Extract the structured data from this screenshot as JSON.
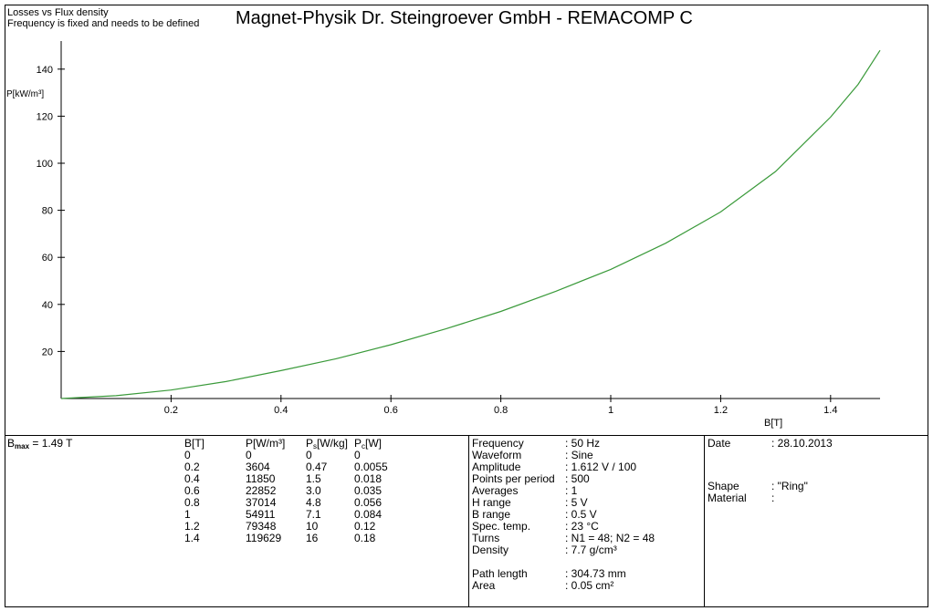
{
  "header": {
    "subtitle_line1": "Losses vs Flux density",
    "subtitle_line2": "Frequency is fixed and needs to be defined",
    "title": "Magnet-Physik Dr. Steingroever GmbH - REMACOMP C"
  },
  "chart_data": {
    "type": "line",
    "xlabel": "B[T]",
    "ylabel": "P[kW/m³]",
    "xlim": [
      0,
      1.49
    ],
    "ylim": [
      0,
      150
    ],
    "x_ticks": [
      "0.2",
      "0.4",
      "0.6",
      "0.8",
      "1",
      "1.2",
      "1.4"
    ],
    "y_ticks": [
      "20",
      "40",
      "60",
      "80",
      "100",
      "120",
      "140"
    ],
    "grid": false,
    "line_color": "#3a9a3a",
    "series": [
      {
        "x": [
          0,
          0.1,
          0.2,
          0.3,
          0.4,
          0.5,
          0.6,
          0.7,
          0.8,
          0.9,
          1.0,
          1.1,
          1.2,
          1.3,
          1.4,
          1.45,
          1.49
        ],
        "values": [
          0,
          1.2,
          3.6,
          7.2,
          11.85,
          16.9,
          22.85,
          29.6,
          37.0,
          45.6,
          54.9,
          66.0,
          79.3,
          96.5,
          119.6,
          133.5,
          148.0
        ]
      }
    ]
  },
  "bmax": {
    "label": "B",
    "sub": "max",
    "value": " = 1.49  T"
  },
  "table": {
    "headers": [
      "B[T]",
      "P[W/m³]",
      "P",
      "[W/kg]",
      "P",
      "[W]"
    ],
    "col_b": [
      "0",
      "0.2",
      "0.4",
      "0.6",
      "0.8",
      "1",
      "1.2",
      "1.4"
    ],
    "col_p": [
      "0",
      "3604",
      "11850",
      "22852",
      "37014",
      "54911",
      "79348",
      "119629"
    ],
    "col_ps": [
      "0",
      "0.47",
      "1.5",
      "3.0",
      "4.8",
      "7.1",
      "10",
      "16"
    ],
    "col_pc": [
      "0",
      "0.0055",
      "0.018",
      "0.035",
      "0.056",
      "0.084",
      "0.12",
      "0.18"
    ],
    "sub_s": "s",
    "sub_c": "c"
  },
  "params": {
    "labels": [
      "Frequency",
      "Waveform",
      "Amplitude",
      "Points per period",
      "Averages",
      "H range",
      "B range",
      "Spec. temp.",
      "Turns",
      "Density",
      "",
      "Path length",
      "Area"
    ],
    "values": [
      ": 50 Hz",
      ": Sine",
      ": 1.612 V / 100",
      ": 500",
      ": 1",
      ": 5 V",
      ": 0.5 V",
      ": 23 °C",
      ": N1 = 48; N2 = 48",
      ": 7.7 g/cm³",
      "",
      ": 304.73 mm",
      ": 0.05 cm²"
    ]
  },
  "meta": {
    "date_label": "Date",
    "date_value": ": 28.10.2013",
    "shape_label": "Shape",
    "shape_value": ": \"Ring\"",
    "material_label": "Material",
    "material_value": ":"
  }
}
